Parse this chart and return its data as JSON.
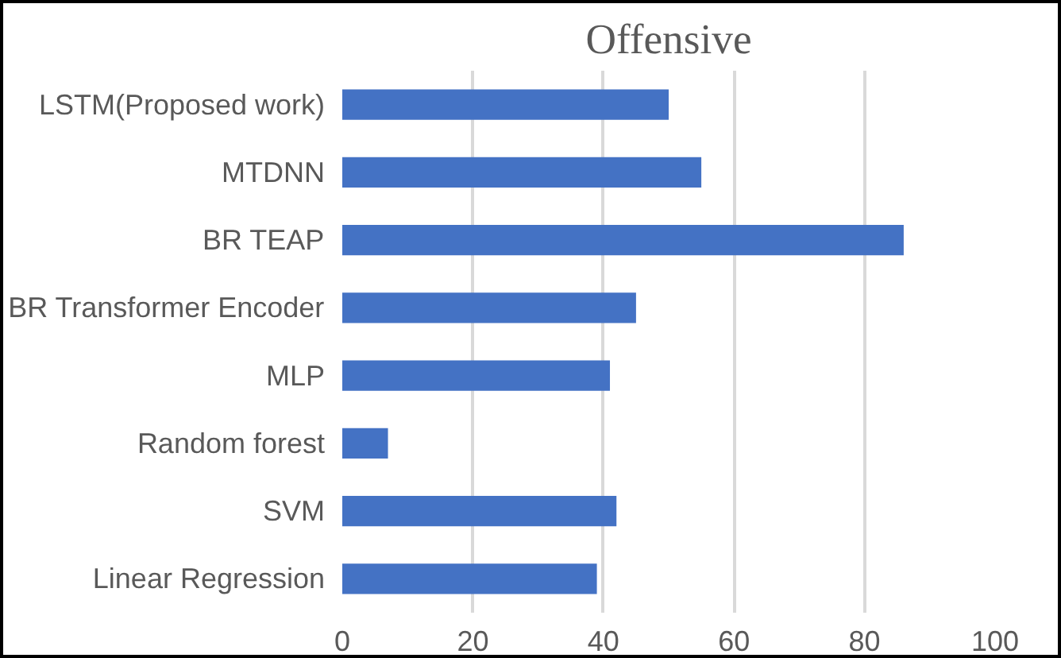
{
  "chart_data": {
    "type": "bar",
    "orientation": "horizontal",
    "title": "Offensive",
    "categories": [
      "LSTM(Proposed work)",
      "MTDNN",
      "BR TEAP",
      "BR Transformer Encoder",
      "MLP",
      "Random forest",
      "SVM",
      "Linear Regression"
    ],
    "values": [
      50,
      55,
      86,
      45,
      41,
      7,
      42,
      39
    ],
    "color": "#4472c4",
    "xlim": [
      0,
      100
    ],
    "xticks": [
      0,
      20,
      40,
      60,
      80,
      100
    ],
    "grid": "x"
  }
}
